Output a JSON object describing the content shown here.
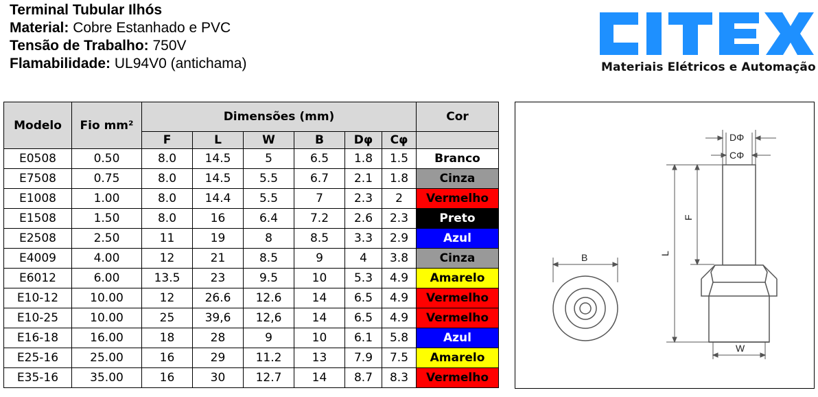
{
  "specs": {
    "title": "Terminal Tubular Ilhós",
    "material_label": "Material:",
    "material_value": " Cobre Estanhado e PVC",
    "voltage_label": "Tensão de Trabalho:",
    "voltage_value": " 750V",
    "flammability_label": "Flamabilidade:",
    "flammability_value": " UL94V0 (antichama)"
  },
  "brand": {
    "logo_text": "CITEX",
    "tagline": "Materiais Elétricos e Automação",
    "logo_color": "#1e90ff"
  },
  "table": {
    "headers": {
      "model": "Modelo",
      "wire": "Fio mm²",
      "dimensions": "Dimensões (mm)",
      "color": "Cor",
      "F": "F",
      "L": "L",
      "W": "W",
      "B": "B",
      "D": "Dφ",
      "C": "Cφ"
    },
    "header_bg": "#d9d9d9",
    "rows": [
      {
        "model": "E0508",
        "wire": "0.50",
        "F": "8.0",
        "L": "14.5",
        "W": "5",
        "B": "6.5",
        "D": "1.8",
        "C": "1.5",
        "color": "Branco",
        "bg": "#ffffff",
        "fg": "#000000"
      },
      {
        "model": "E7508",
        "wire": "0.75",
        "F": "8.0",
        "L": "14.5",
        "W": "5.5",
        "B": "6.7",
        "D": "2.1",
        "C": "1.8",
        "color": "Cinza",
        "bg": "#999999",
        "fg": "#000000"
      },
      {
        "model": "E1008",
        "wire": "1.00",
        "F": "8.0",
        "L": "14.4",
        "W": "5.5",
        "B": "7",
        "D": "2.3",
        "C": "2",
        "color": "Vermelho",
        "bg": "#ff0000",
        "fg": "#000000"
      },
      {
        "model": "E1508",
        "wire": "1.50",
        "F": "8.0",
        "L": "16",
        "W": "6.4",
        "B": "7.2",
        "D": "2.6",
        "C": "2.3",
        "color": "Preto",
        "bg": "#000000",
        "fg": "#ffffff"
      },
      {
        "model": "E2508",
        "wire": "2.50",
        "F": "11",
        "L": "19",
        "W": "8",
        "B": "8.5",
        "D": "3.3",
        "C": "2.9",
        "color": "Azul",
        "bg": "#0000ff",
        "fg": "#ffffff"
      },
      {
        "model": "E4009",
        "wire": "4.00",
        "F": "12",
        "L": "21",
        "W": "8.5",
        "B": "9",
        "D": "4",
        "C": "3.8",
        "color": "Cinza",
        "bg": "#999999",
        "fg": "#000000"
      },
      {
        "model": "E6012",
        "wire": "6.00",
        "F": "13.5",
        "L": "23",
        "W": "9.5",
        "B": "10",
        "D": "5.3",
        "C": "4.9",
        "color": "Amarelo",
        "bg": "#ffff00",
        "fg": "#000000"
      },
      {
        "model": "E10-12",
        "wire": "10.00",
        "F": "12",
        "L": "26.6",
        "W": "12.6",
        "B": "14",
        "D": "6.5",
        "C": "4.9",
        "color": "Vermelho",
        "bg": "#ff0000",
        "fg": "#000000"
      },
      {
        "model": "E10-25",
        "wire": "10.00",
        "F": "25",
        "L": "39,6",
        "W": "12,6",
        "B": "14",
        "D": "6.5",
        "C": "4.9",
        "color": "Vermelho",
        "bg": "#ff0000",
        "fg": "#000000"
      },
      {
        "model": "E16-18",
        "wire": "16.00",
        "F": "18",
        "L": "28",
        "W": "9",
        "B": "10",
        "D": "6.1",
        "C": "5.8",
        "color": "Azul",
        "bg": "#0000ff",
        "fg": "#ffffff"
      },
      {
        "model": "E25-16",
        "wire": "25.00",
        "F": "16",
        "L": "29",
        "W": "11.2",
        "B": "13",
        "D": "7.9",
        "C": "7.5",
        "color": "Amarelo",
        "bg": "#ffff00",
        "fg": "#000000"
      },
      {
        "model": "E35-16",
        "wire": "35.00",
        "F": "16",
        "L": "30",
        "W": "12.7",
        "B": "14",
        "D": "8.7",
        "C": "8.3",
        "color": "Vermelho",
        "bg": "#ff0000",
        "fg": "#000000"
      }
    ]
  },
  "drawing": {
    "labels": {
      "D": "DΦ",
      "C": "CΦ",
      "F": "F",
      "L": "L",
      "B": "B",
      "W": "W"
    }
  }
}
